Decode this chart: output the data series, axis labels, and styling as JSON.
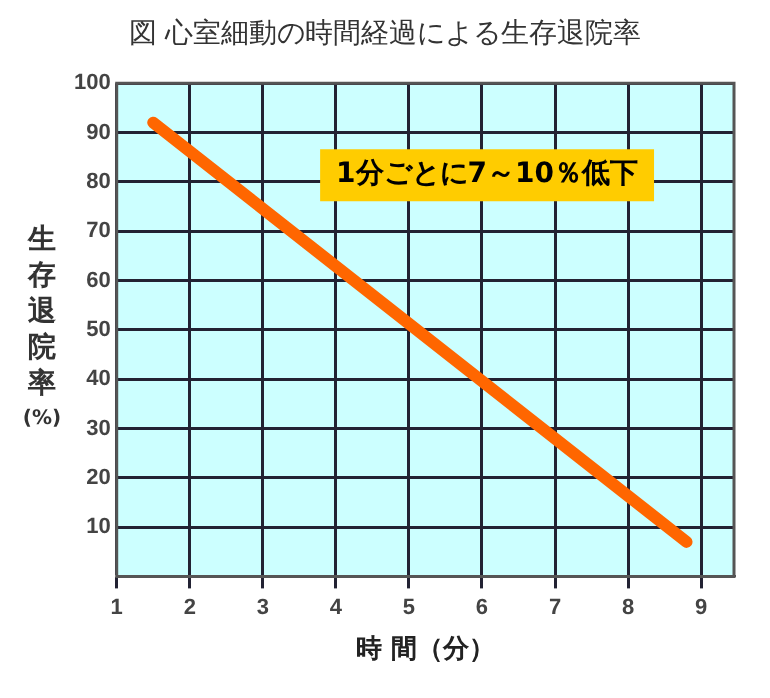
{
  "chart_data": {
    "type": "line",
    "title": "図 心室細動の時間経過による生存退院率",
    "xlabel": "時 間（分）",
    "ylabel": "生存退院率(%)",
    "annotations": [
      "1分ごとに7～10％低下"
    ],
    "x": [
      1.5,
      8.8
    ],
    "series": [
      {
        "color": "#ff6600",
        "values": [
          92,
          7
        ]
      }
    ],
    "xlim": [
      1,
      9.45
    ],
    "xticks": [
      1,
      2,
      3,
      4,
      5,
      6,
      7,
      8,
      9
    ],
    "ylim": [
      0,
      100
    ],
    "yticks": [
      10,
      20,
      30,
      40,
      50,
      60,
      70,
      80,
      90,
      100
    ],
    "grid": true,
    "legend": false,
    "marker": "none",
    "line_style": "solid"
  }
}
